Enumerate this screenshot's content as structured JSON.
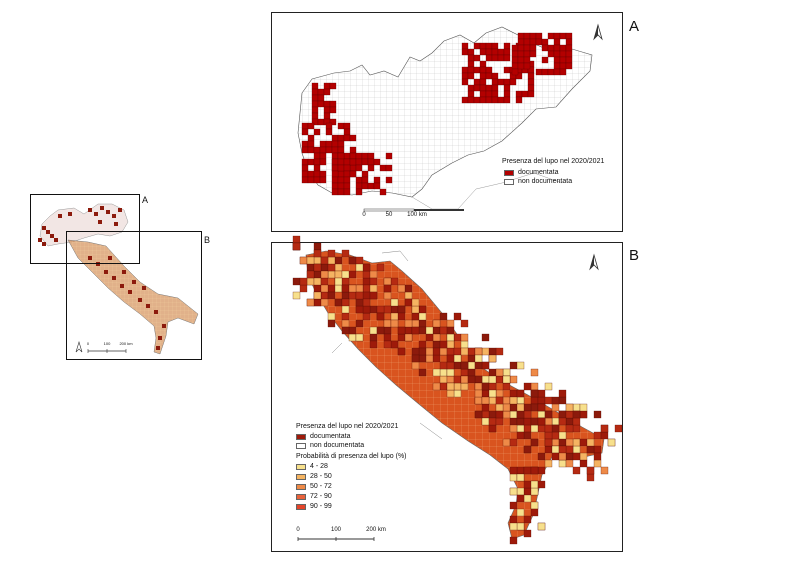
{
  "overview": {
    "inset_labels": [
      "A",
      "B"
    ],
    "scale_labels": [
      "0",
      "100",
      "200 km"
    ]
  },
  "panel_a": {
    "letter": "A",
    "legend_title": "Presenza del lupo nel 2020/2021",
    "legend_items": [
      {
        "label": "documentata",
        "color": "#b30000"
      },
      {
        "label": "non documentata",
        "color": "#ffffff"
      }
    ],
    "scale_labels": [
      "0",
      "50",
      "100 km"
    ]
  },
  "panel_b": {
    "letter": "B",
    "legend_title": "Presenza del lupo nel 2020/2021",
    "legend_items": [
      {
        "label": "documentata",
        "color": "#9e1a0a"
      },
      {
        "label": "non documentata",
        "color": "#ffffff"
      }
    ],
    "prob_title": "Probabilità di presenza del lupo (%)",
    "prob_items": [
      {
        "label": "4 - 28",
        "color": "#f7e08c"
      },
      {
        "label": "28 - 50",
        "color": "#f5b462"
      },
      {
        "label": "50 - 72",
        "color": "#ee8a48"
      },
      {
        "label": "72 - 90",
        "color": "#e8623b"
      },
      {
        "label": "90 - 99",
        "color": "#e4452a"
      }
    ],
    "scale_labels": [
      "0",
      "100",
      "200 km"
    ]
  },
  "colors": {
    "documented": "#b30000",
    "documented_dark": "#8c1a0c",
    "grid_line": "#c8c8c8",
    "coast": "#555555"
  },
  "icons": [
    "north-arrow-icon"
  ]
}
